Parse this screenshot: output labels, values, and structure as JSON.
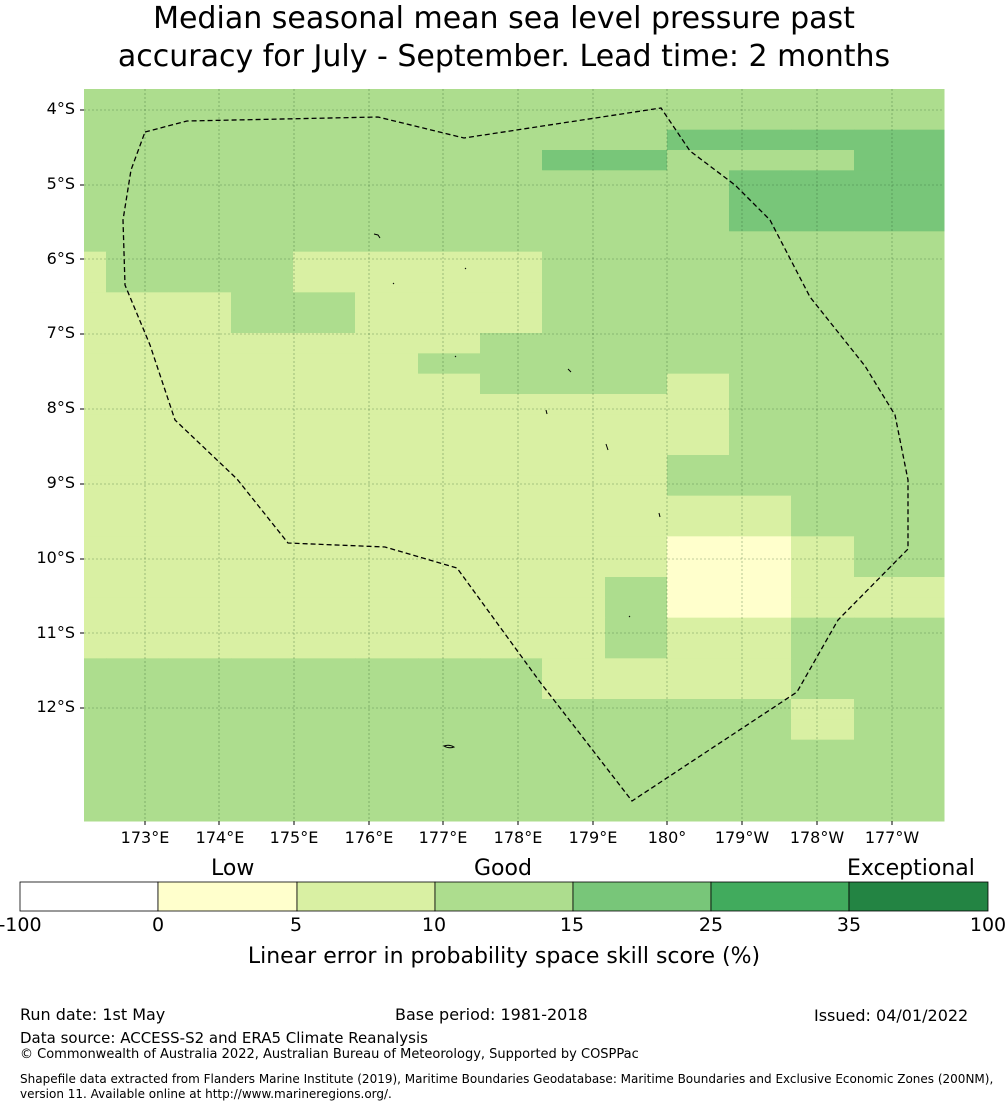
{
  "title": {
    "line1": "Median seasonal mean sea level pressure past",
    "line2": "accuracy for July - September. Lead time: 2 months"
  },
  "map": {
    "lat_ticks": [
      "4°S",
      "5°S",
      "6°S",
      "7°S",
      "8°S",
      "9°S",
      "10°S",
      "11°S",
      "12°S"
    ],
    "lon_ticks": [
      "173°E",
      "174°E",
      "175°E",
      "176°E",
      "177°E",
      "178°E",
      "179°E",
      "180°",
      "179°W",
      "178°W",
      "177°W"
    ],
    "grid_rows": [
      "33333333333333",
      "33333333333333",
      "33333333334444",
      "33333333443334",
      "33333333333444",
      "33333333333444",
      "33333333333444",
      "33333333333333",
      "23332222333333",
      "23332222333333",
      "22233222333333",
      "22233222333333",
      "22222223333333",
      "22222233333333",
      "22222223332333",
      "22222222222333",
      "22222222222333",
      "22222222222333",
      "22222222223333",
      "22222222223333",
      "22222222222233",
      "22222222222233",
      "22222222221123",
      "22222222221123",
      "22222222231122",
      "22222222231122",
      "22222222232233",
      "22222222232233",
      "33333333222233",
      "33333333222233",
      "33333333333323",
      "33333333333323",
      "33333333333333",
      "33333333333333",
      "33333333333333",
      "33333333333333"
    ],
    "eez_boundary": "Exclusive Economic Zone boundary",
    "land": "islands"
  },
  "colorbar": {
    "categories": [
      "Low",
      "Good",
      "Exceptional"
    ],
    "bins": [
      {
        "from": "-100",
        "to": "0",
        "color": "#ffffff"
      },
      {
        "from": "0",
        "to": "5",
        "color": "#ffffcc"
      },
      {
        "from": "5",
        "to": "10",
        "color": "#d9f0a3"
      },
      {
        "from": "10",
        "to": "15",
        "color": "#addd8e"
      },
      {
        "from": "15",
        "to": "25",
        "color": "#78c679"
      },
      {
        "from": "25",
        "to": "35",
        "color": "#41ab5d"
      },
      {
        "from": "35",
        "to": "100",
        "color": "#238443"
      }
    ],
    "ticks": [
      "-100",
      "0",
      "5",
      "10",
      "15",
      "25",
      "35",
      "100"
    ],
    "label": "Linear error in probability space skill score (%)"
  },
  "footer": {
    "run_date": "Run date: 1st May",
    "base_period": "Base period: 1981-2018",
    "issued": "Issued: 04/01/2022",
    "data_source": "Data source: ACCESS-S2 and ERA5 Climate Reanalysis",
    "copyright": "© Commonwealth of Australia 2022, Australian Bureau of Meteorology, Supported by COSPPac",
    "shapefile": "Shapefile data extracted from Flanders Marine Institute (2019), Maritime Boundaries Geodatabase: Maritime Boundaries and Exclusive Economic Zones (200NM), version 11. Available online at http://www.marineregions.org/."
  }
}
